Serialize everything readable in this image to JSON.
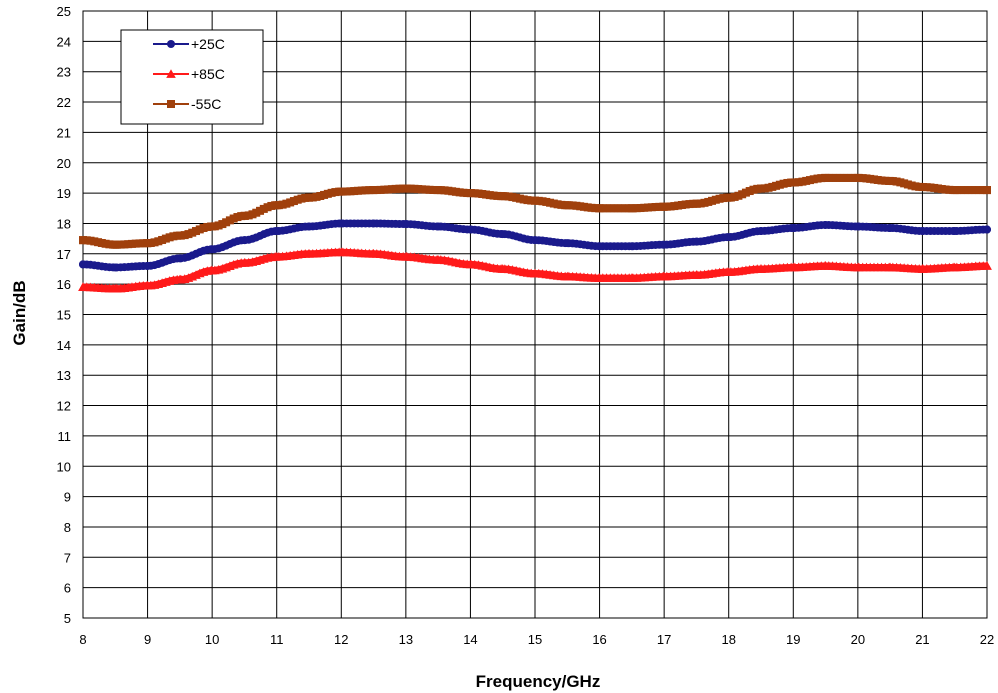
{
  "chart_data": {
    "type": "line",
    "title": "",
    "xlabel": "Frequency/GHz",
    "ylabel": "Gain/dB",
    "xlim": [
      8,
      22
    ],
    "ylim": [
      5,
      25
    ],
    "x_ticks": [
      8,
      9,
      10,
      11,
      12,
      13,
      14,
      15,
      16,
      17,
      18,
      19,
      20,
      21,
      22
    ],
    "y_ticks": [
      5,
      6,
      7,
      8,
      9,
      10,
      11,
      12,
      13,
      14,
      15,
      16,
      17,
      18,
      19,
      20,
      21,
      22,
      23,
      24,
      25
    ],
    "grid": true,
    "legend_position": "top-left",
    "series": [
      {
        "name": "+25C",
        "color": "#1a1a8c",
        "marker": "circle",
        "x": [
          8.0,
          8.5,
          9.0,
          9.5,
          10.0,
          10.5,
          11.0,
          11.5,
          12.0,
          12.5,
          13.0,
          13.5,
          14.0,
          14.5,
          15.0,
          15.5,
          16.0,
          16.5,
          17.0,
          17.5,
          18.0,
          18.5,
          19.0,
          19.5,
          20.0,
          20.5,
          21.0,
          21.5,
          22.0
        ],
        "y": [
          16.65,
          16.55,
          16.6,
          16.85,
          17.15,
          17.45,
          17.75,
          17.9,
          18.0,
          18.0,
          17.98,
          17.9,
          17.8,
          17.65,
          17.45,
          17.35,
          17.25,
          17.25,
          17.3,
          17.4,
          17.55,
          17.75,
          17.85,
          17.95,
          17.9,
          17.85,
          17.75,
          17.75,
          17.8
        ]
      },
      {
        "name": "+85C",
        "color": "#ff1a1a",
        "marker": "triangle",
        "x": [
          8.0,
          8.5,
          9.0,
          9.5,
          10.0,
          10.5,
          11.0,
          11.5,
          12.0,
          12.5,
          13.0,
          13.5,
          14.0,
          14.5,
          15.0,
          15.5,
          16.0,
          16.5,
          17.0,
          17.5,
          18.0,
          18.5,
          19.0,
          19.5,
          20.0,
          20.5,
          21.0,
          21.5,
          22.0
        ],
        "y": [
          15.9,
          15.85,
          15.95,
          16.15,
          16.45,
          16.7,
          16.9,
          17.0,
          17.05,
          17.0,
          16.9,
          16.8,
          16.65,
          16.5,
          16.35,
          16.25,
          16.2,
          16.2,
          16.25,
          16.3,
          16.4,
          16.5,
          16.55,
          16.6,
          16.55,
          16.55,
          16.5,
          16.55,
          16.6
        ]
      },
      {
        "name": "-55C",
        "color": "#a0400c",
        "marker": "square",
        "x": [
          8.0,
          8.5,
          9.0,
          9.5,
          10.0,
          10.5,
          11.0,
          11.5,
          12.0,
          12.5,
          13.0,
          13.5,
          14.0,
          14.5,
          15.0,
          15.5,
          16.0,
          16.5,
          17.0,
          17.5,
          18.0,
          18.5,
          19.0,
          19.5,
          20.0,
          20.5,
          21.0,
          21.5,
          22.0
        ],
        "y": [
          17.45,
          17.3,
          17.35,
          17.6,
          17.9,
          18.25,
          18.6,
          18.85,
          19.05,
          19.1,
          19.15,
          19.1,
          19.0,
          18.9,
          18.75,
          18.6,
          18.5,
          18.5,
          18.55,
          18.65,
          18.85,
          19.15,
          19.35,
          19.5,
          19.5,
          19.4,
          19.2,
          19.1,
          19.1
        ]
      }
    ]
  }
}
